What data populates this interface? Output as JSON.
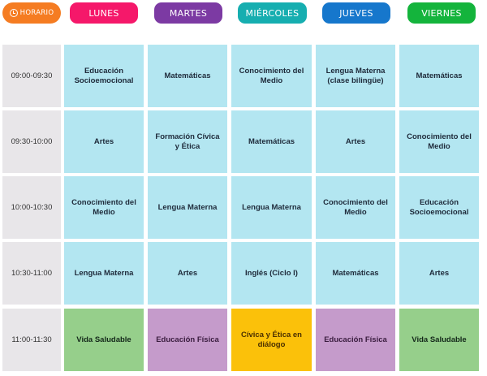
{
  "header": {
    "horario": {
      "label": "HORARIO",
      "icon": "clock-icon",
      "color": "#f57c22"
    },
    "days": [
      {
        "label": "LUNES",
        "color": "#f5186a"
      },
      {
        "label": "MARTES",
        "color": "#7c3aa3"
      },
      {
        "label": "MIÉRCOLES",
        "color": "#16aeb0"
      },
      {
        "label": "JUEVES",
        "color": "#1677cc"
      },
      {
        "label": "VIERNES",
        "color": "#14b43c"
      }
    ]
  },
  "schedule": {
    "rows": [
      {
        "time": "09:00-09:30",
        "cells": [
          {
            "subject": "Educación Socioemocional",
            "color": "blue"
          },
          {
            "subject": "Matemáticas",
            "color": "blue"
          },
          {
            "subject": "Conocimiento del Medio",
            "color": "blue"
          },
          {
            "subject": "Lengua Materna (clase bilingüe)",
            "color": "blue"
          },
          {
            "subject": "Matemáticas",
            "color": "blue"
          }
        ]
      },
      {
        "time": "09:30-10:00",
        "cells": [
          {
            "subject": "Artes",
            "color": "blue"
          },
          {
            "subject": "Formación Cívica y Ética",
            "color": "blue"
          },
          {
            "subject": "Matemáticas",
            "color": "blue"
          },
          {
            "subject": "Artes",
            "color": "blue"
          },
          {
            "subject": "Conocimiento del Medio",
            "color": "blue"
          }
        ]
      },
      {
        "time": "10:00-10:30",
        "cells": [
          {
            "subject": "Conocimiento del Medio",
            "color": "blue"
          },
          {
            "subject": "Lengua Materna",
            "color": "blue"
          },
          {
            "subject": "Lengua Materna",
            "color": "blue"
          },
          {
            "subject": "Conocimiento del Medio",
            "color": "blue"
          },
          {
            "subject": "Educación Socioemocional",
            "color": "blue"
          }
        ]
      },
      {
        "time": "10:30-11:00",
        "cells": [
          {
            "subject": "Lengua Materna",
            "color": "blue"
          },
          {
            "subject": "Artes",
            "color": "blue"
          },
          {
            "subject": "Inglés (Ciclo I)",
            "color": "blue"
          },
          {
            "subject": "Matemáticas",
            "color": "blue"
          },
          {
            "subject": "Artes",
            "color": "blue"
          }
        ]
      },
      {
        "time": "11:00-11:30",
        "cells": [
          {
            "subject": "Vida Saludable",
            "color": "green"
          },
          {
            "subject": "Educación Física",
            "color": "purple"
          },
          {
            "subject": "Cívica y Ética en diálogo",
            "color": "yellow"
          },
          {
            "subject": "Educación Física",
            "color": "purple"
          },
          {
            "subject": "Vida Saludable",
            "color": "green"
          }
        ]
      }
    ]
  }
}
